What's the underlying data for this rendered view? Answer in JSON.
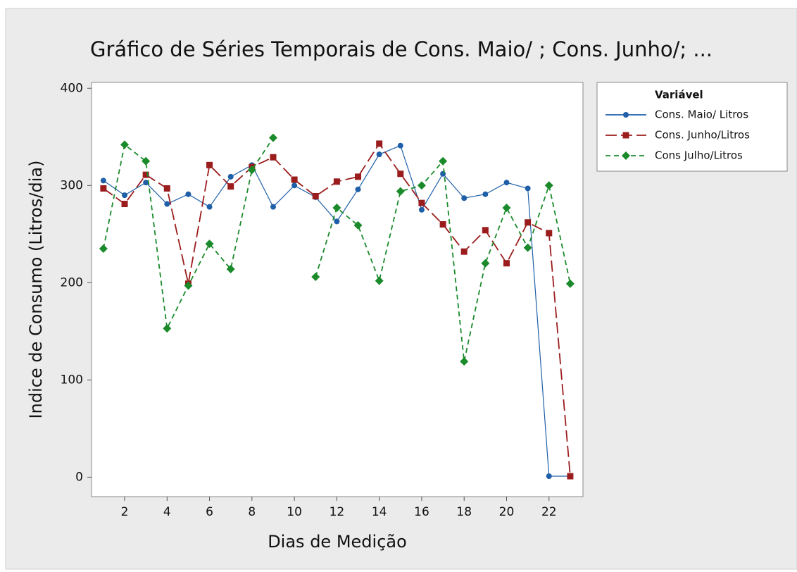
{
  "chart_data": {
    "type": "line",
    "title": "Gráfico de Séries Temporais de Cons. Maio/ ; Cons. Junho/; ...",
    "x_label": "Dias de Medição",
    "y_label": "Indice de Consumo (Litros/dia)",
    "legend_title": "Variável",
    "legend": "right",
    "x": [
      1,
      2,
      3,
      4,
      5,
      6,
      7,
      8,
      9,
      10,
      11,
      12,
      13,
      14,
      15,
      16,
      17,
      18,
      19,
      20,
      21,
      22,
      23
    ],
    "xlim": [
      0.44,
      23.6
    ],
    "xticks": [
      2,
      4,
      6,
      8,
      10,
      12,
      14,
      16,
      18,
      20,
      22
    ],
    "ylim": [
      -20,
      406
    ],
    "yticks": [
      0,
      100,
      200,
      300,
      400
    ],
    "series": [
      {
        "name": "Cons. Maio/ Litros",
        "color": "#1f5fa8",
        "line_style": "solid",
        "marker": "circle",
        "values": [
          305,
          290,
          303,
          281,
          291,
          278,
          309,
          321,
          278,
          300,
          288,
          263,
          296,
          332,
          341,
          275,
          312,
          287,
          291,
          303,
          297,
          1,
          1
        ]
      },
      {
        "name": "Cons. Junho/Litros",
        "color": "#9b1c1c",
        "line_style": "long-dash",
        "marker": "square",
        "values": [
          297,
          281,
          311,
          297,
          199,
          321,
          299,
          319,
          329,
          306,
          289,
          304,
          309,
          343,
          312,
          282,
          260,
          232,
          254,
          220,
          262,
          251,
          1
        ]
      },
      {
        "name": "Cons Julho/Litros",
        "color": "#1a8a2a",
        "line_style": "short-dash",
        "marker": "diamond",
        "values": [
          235,
          342,
          325,
          153,
          197,
          240,
          214,
          316,
          349,
          null,
          206,
          277,
          259,
          202,
          294,
          300,
          325,
          119,
          220,
          277,
          236,
          300,
          199
        ]
      }
    ]
  }
}
